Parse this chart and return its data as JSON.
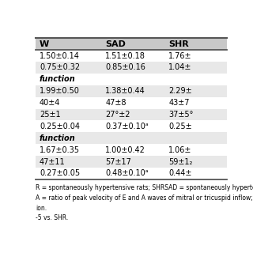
{
  "headers": [
    "W",
    "SAD",
    "SHR"
  ],
  "rows": [
    {
      "label": "",
      "values": [
        "1.50±0.14",
        "1.51±0.18",
        "1.76±"
      ],
      "bg": "white"
    },
    {
      "label": "",
      "values": [
        "0.75±0.32",
        "0.85±0.16",
        "1.04±"
      ],
      "bg": "#e8e8e8"
    },
    {
      "label": "function",
      "values": [
        "",
        "",
        ""
      ],
      "bg": "white",
      "bold": true
    },
    {
      "label": "",
      "values": [
        "1.99±0.50",
        "1.38±0.44",
        "2.29±"
      ],
      "bg": "#e8e8e8"
    },
    {
      "label": "",
      "values": [
        "40±4",
        "47±8",
        "43±7"
      ],
      "bg": "white"
    },
    {
      "label": "",
      "values": [
        "25±1",
        "27°±2",
        "37±5°"
      ],
      "bg": "#e8e8e8"
    },
    {
      "label": "",
      "values": [
        "0.25±0.04",
        "0.37±0.10ᵃ",
        "0.25±"
      ],
      "bg": "white"
    },
    {
      "label": "function",
      "values": [
        "",
        "",
        ""
      ],
      "bg": "#e8e8e8",
      "bold": true
    },
    {
      "label": "",
      "values": [
        "1.67±0.35",
        "1.00±0.42",
        "1.06±"
      ],
      "bg": "white"
    },
    {
      "label": "",
      "values": [
        "47±11",
        "57±17",
        "59±1₂"
      ],
      "bg": "#e8e8e8"
    },
    {
      "label": "",
      "values": [
        "0.27±0.05",
        "0.48±0.10ᵃ",
        "0.44±"
      ],
      "bg": "white"
    }
  ],
  "footer_lines": [
    "R = spontaneously hypertensive rats; SHRSAD = spontaneously hypertensive",
    "A = ratio of peak velocity of E and A waves of mitral or tricuspid inflow; DT = a",
    "ion.",
    "-5 vs. SHR."
  ],
  "header_bg": "#c8c8c8",
  "font_size": 7.0,
  "header_font_size": 8.0
}
